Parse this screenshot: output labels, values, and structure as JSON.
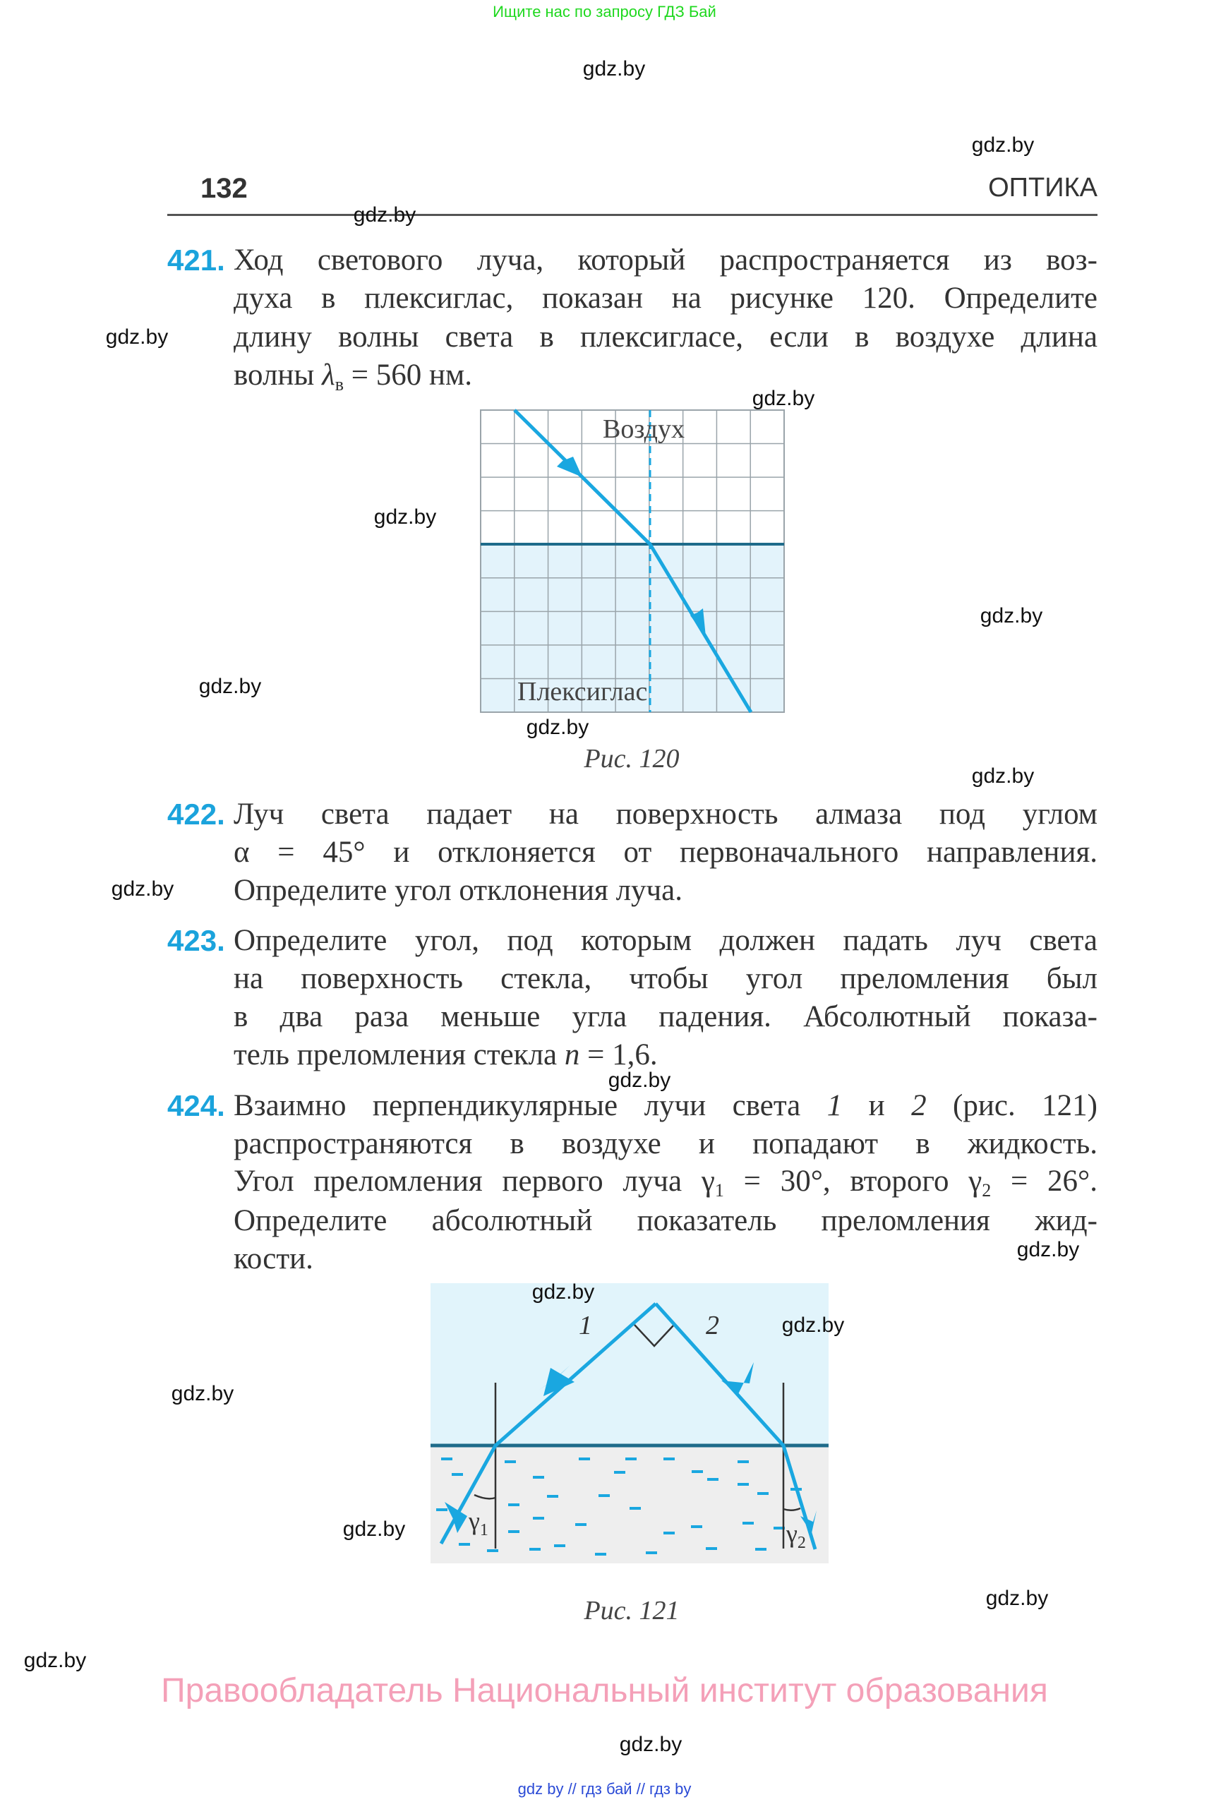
{
  "top_note": "Ищите нас по запросу ГДЗ Бай",
  "header": {
    "page_number": "132",
    "section": "ОПТИКА"
  },
  "watermark_text": "gdz.by",
  "problems": [
    {
      "number": "421.",
      "lines": [
        [
          "Ход светового луча, который распространяется из воз-"
        ],
        [
          "духа в плексиглас, показан на рисунке 120. Определите"
        ],
        [
          "длину волны света в плексигласе, если в воздухе длина"
        ],
        [
          "волны ",
          {
            "i": "λ"
          },
          {
            "sub": "в"
          },
          " = 560 нм."
        ]
      ]
    },
    {
      "number": "422.",
      "lines": [
        [
          "Луч света падает на поверхность алмаза под углом"
        ],
        [
          "α = 45° и отклоняется от первоначального направления."
        ],
        [
          "Определите угол отклонения луча."
        ]
      ]
    },
    {
      "number": "423.",
      "lines": [
        [
          "Определите угол, под которым должен падать луч света"
        ],
        [
          "на поверхность стекла, чтобы угол преломления был"
        ],
        [
          "в два раза меньше угла падения. Абсолютный показа-"
        ],
        [
          "тель преломления стекла ",
          {
            "i": "n"
          },
          " = 1,6."
        ]
      ]
    },
    {
      "number": "424.",
      "lines": [
        [
          "Взаимно перпендикулярные лучи света ",
          {
            "i": "1"
          },
          " и ",
          {
            "i": "2"
          },
          " (рис. 121)"
        ],
        [
          "распространяются в воздухе и попадают в жидкость."
        ],
        [
          "Угол преломления первого луча γ",
          {
            "sub": "1"
          },
          " = 30°, второго γ",
          {
            "sub": "2"
          },
          " = 26°."
        ],
        [
          "Определите абсолютный показатель преломления жид-"
        ],
        [
          "кости."
        ]
      ]
    }
  ],
  "figure120": {
    "caption": "Рис. 120",
    "label_top": "Воздух",
    "label_bottom": "Плексиглас"
  },
  "figure121": {
    "caption": "Рис. 121",
    "ray1": "1",
    "ray2": "2",
    "gamma1": "γ",
    "gamma1_sub": "1",
    "gamma2": "γ",
    "gamma2_sub": "2"
  },
  "colors": {
    "accent": "#1ba3dc",
    "ray": "#1aa7e0",
    "interface": "#1e6b8a",
    "air": "#e1f4fb",
    "liquid": "#eeeeee",
    "copyright": "#f4a0b8"
  },
  "copyright": "Правообладатель Национальный институт образования",
  "bottom_links": "gdz by  //  гдз бай  //  гдз by"
}
